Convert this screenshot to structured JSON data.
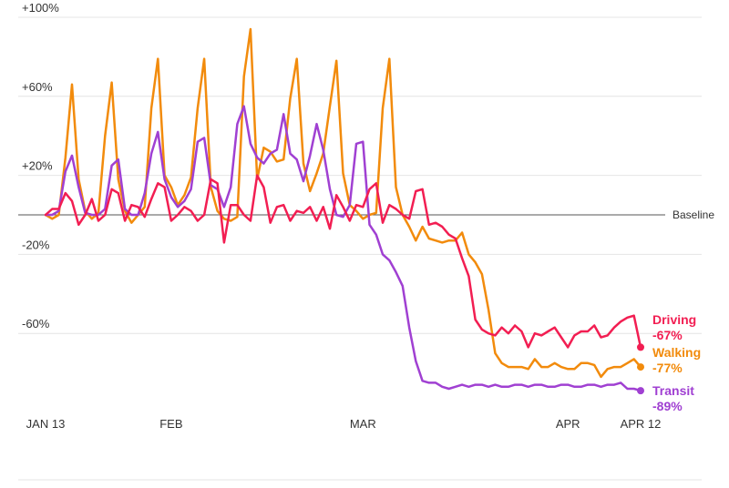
{
  "chart_data": {
    "type": "line",
    "ylim": [
      -100,
      100
    ],
    "y_ticks": [
      "+100%",
      "+60%",
      "+20%",
      "-20%",
      "-60%"
    ],
    "y_tick_values": [
      100,
      60,
      20,
      -20,
      -60
    ],
    "baseline_label": "Baseline",
    "x_ticks": [
      {
        "label": "JAN 13",
        "index": 0
      },
      {
        "label": "FEB",
        "index": 19
      },
      {
        "label": "MAR",
        "index": 48
      },
      {
        "label": "APR",
        "index": 79
      },
      {
        "label": "APR 12",
        "index": 90
      }
    ],
    "x_range": [
      0,
      90
    ],
    "grid": true,
    "colors": {
      "driving": "#f21e52",
      "walking": "#f28b0c",
      "transit": "#a040d2",
      "grid": "#e4e4e4",
      "baseline": "#555555"
    },
    "series": [
      {
        "name": "Driving",
        "end_label": "-67%",
        "color": "#f21e52",
        "values": [
          0,
          3,
          3,
          11,
          7,
          -5,
          0,
          8,
          -3,
          0,
          13,
          11,
          -3,
          5,
          4,
          -1,
          8,
          16,
          14,
          -3,
          0,
          4,
          2,
          -3,
          0,
          18,
          16,
          -14,
          5,
          5,
          0,
          -3,
          20,
          14,
          -4,
          4,
          5,
          -3,
          2,
          1,
          4,
          -3,
          4,
          -7,
          10,
          4,
          -3,
          5,
          4,
          13,
          16,
          -4,
          5,
          3,
          0,
          -2,
          12,
          13,
          -5,
          -4,
          -6,
          -10,
          -12,
          -22,
          -31,
          -53,
          -58,
          -60,
          -61,
          -57,
          -60,
          -56,
          -59,
          -67,
          -60,
          -61,
          -59,
          -57,
          -62,
          -67,
          -61,
          -59,
          -59,
          -56,
          -62,
          -61,
          -57,
          -54,
          -52,
          -51,
          -67
        ],
        "end_value": -67
      },
      {
        "name": "Walking",
        "end_label": "-77%",
        "color": "#f28b0c",
        "values": [
          0,
          -2,
          0,
          29,
          66,
          18,
          2,
          -2,
          1,
          40,
          67,
          18,
          2,
          -4,
          0,
          4,
          54,
          79,
          20,
          14,
          5,
          10,
          19,
          54,
          79,
          14,
          2,
          -2,
          -3,
          -1,
          70,
          94,
          18,
          34,
          32,
          27,
          28,
          59,
          79,
          26,
          12,
          21,
          31,
          55,
          78,
          21,
          5,
          2,
          -2,
          0,
          1,
          54,
          79,
          14,
          0,
          -6,
          -13,
          -6,
          -12,
          -13,
          -14,
          -13,
          -13,
          -9,
          -20,
          -24,
          -30,
          -48,
          -70,
          -75,
          -77,
          -77,
          -77,
          -78,
          -73,
          -77,
          -77,
          -75,
          -77,
          -78,
          -78,
          -75,
          -75,
          -76,
          -82,
          -78,
          -77,
          -77,
          -75,
          -73,
          -77
        ],
        "end_value": -77
      },
      {
        "name": "Transit",
        "end_label": "-89%",
        "color": "#a040d2",
        "values": [
          0,
          0,
          2,
          22,
          30,
          14,
          1,
          0,
          0,
          3,
          25,
          28,
          3,
          0,
          0,
          11,
          31,
          42,
          18,
          9,
          4,
          7,
          13,
          37,
          39,
          15,
          13,
          4,
          14,
          46,
          55,
          36,
          29,
          26,
          31,
          33,
          51,
          31,
          28,
          17,
          30,
          46,
          33,
          13,
          0,
          -1,
          5,
          36,
          37,
          -5,
          -10,
          -20,
          -23,
          -29,
          -36,
          -57,
          -74,
          -84,
          -85,
          -85,
          -87,
          -88,
          -87,
          -86,
          -87,
          -86,
          -86,
          -87,
          -86,
          -87,
          -87,
          -86,
          -86,
          -87,
          -86,
          -86,
          -87,
          -87,
          -86,
          -86,
          -87,
          -87,
          -86,
          -86,
          -87,
          -86,
          -86,
          -85,
          -88,
          -88,
          -89
        ],
        "end_value": -89
      }
    ]
  }
}
